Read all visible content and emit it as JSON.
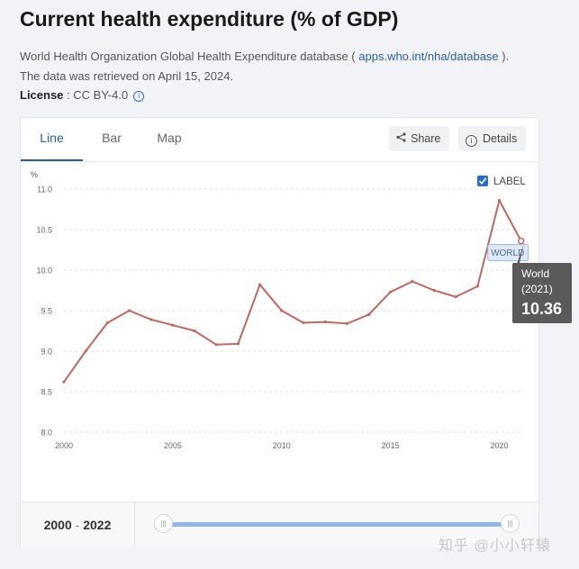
{
  "page": {
    "title": "Current health expenditure (% of GDP)",
    "source_prefix": "World Health Organization Global Health Expenditure database ( ",
    "source_link": "apps.who.int/nha/database",
    "source_suffix": " ).",
    "retrieved": "The data was retrieved on April 15, 2024.",
    "license_label": "License",
    "license_value": " : CC BY-4.0",
    "info_icon_glyph": "i"
  },
  "tabs": [
    {
      "label": "Line",
      "active": true
    },
    {
      "label": "Bar",
      "active": false
    },
    {
      "label": "Map",
      "active": false
    }
  ],
  "toolbar": {
    "share_label": "Share",
    "share_icon": "share-icon",
    "details_label": "Details",
    "details_icon": "info-icon"
  },
  "chart_data": {
    "type": "line",
    "ylabel": "%",
    "ylim": [
      8.0,
      11.0
    ],
    "yticks": [
      "11.0",
      "10.5",
      "10.0",
      "9.5",
      "9.0",
      "8.5",
      "8.0"
    ],
    "xticks": [
      "2000",
      "2005",
      "2010",
      "2015",
      "2020"
    ],
    "grid": true,
    "legend": {
      "label": "LABEL",
      "checked": true,
      "placement": "top-right"
    },
    "series": [
      {
        "name": "World",
        "end_label": "WORLD",
        "color": "#c0675f",
        "x": [
          2000,
          2001,
          2002,
          2003,
          2004,
          2005,
          2006,
          2007,
          2008,
          2009,
          2010,
          2011,
          2012,
          2013,
          2014,
          2015,
          2016,
          2017,
          2018,
          2019,
          2020,
          2021
        ],
        "values": [
          8.62,
          9.0,
          9.35,
          9.5,
          9.39,
          9.32,
          9.25,
          9.08,
          9.09,
          9.82,
          9.5,
          9.35,
          9.36,
          9.34,
          9.45,
          9.73,
          9.86,
          9.75,
          9.67,
          9.8,
          10.86,
          10.36
        ]
      }
    ],
    "tooltip": {
      "name": "World",
      "period": "(2021)",
      "value": "10.36"
    }
  },
  "range": {
    "start": "2000",
    "separator": " - ",
    "end": "2022",
    "handle_glyph": "|||"
  },
  "watermark": "知乎 @小小轩辕"
}
